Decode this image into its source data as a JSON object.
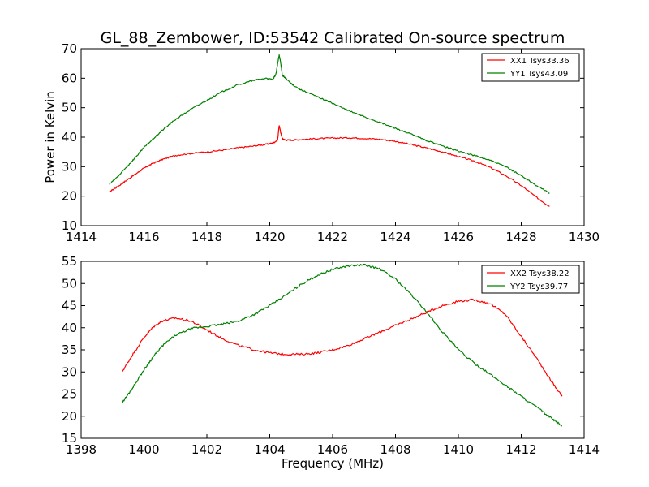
{
  "figure": {
    "title": "GL_88_Zembower, ID:53542 Calibrated On-source spectrum"
  },
  "chart_data": [
    {
      "type": "line",
      "title": "GL_88_Zembower, ID:53542 Calibrated On-source spectrum",
      "xlabel": "",
      "ylabel": "Power in Kelvin",
      "xlim": [
        1414,
        1430
      ],
      "ylim": [
        10,
        70
      ],
      "xticks": [
        "1414",
        "1416",
        "1418",
        "1420",
        "1422",
        "1424",
        "1426",
        "1428",
        "1430"
      ],
      "yticks": [
        "10",
        "20",
        "30",
        "40",
        "50",
        "60",
        "70"
      ],
      "legend": "top-right",
      "grid": false,
      "series": [
        {
          "name": "XX1 Tsys33.36",
          "color": "#ff0000",
          "x": [
            1414.9,
            1415.2,
            1415.5,
            1415.8,
            1416.0,
            1416.3,
            1416.6,
            1417.0,
            1417.5,
            1418.0,
            1418.5,
            1419.0,
            1419.5,
            1419.9,
            1420.1,
            1420.25,
            1420.3,
            1420.35,
            1420.4,
            1420.5,
            1420.7,
            1421.0,
            1421.5,
            1422.0,
            1422.5,
            1423.0,
            1423.5,
            1424.0,
            1424.5,
            1425.0,
            1425.5,
            1426.0,
            1426.5,
            1427.0,
            1427.5,
            1428.0,
            1428.5,
            1428.9
          ],
          "values": [
            21.5,
            23.5,
            25.8,
            28.0,
            29.5,
            31.2,
            32.5,
            33.8,
            34.5,
            35.0,
            35.6,
            36.4,
            37.0,
            37.6,
            38.0,
            39.0,
            44.0,
            41.5,
            39.5,
            39.0,
            39.0,
            39.2,
            39.5,
            39.7,
            39.8,
            39.6,
            39.3,
            38.6,
            37.5,
            36.3,
            35.0,
            33.4,
            31.9,
            29.8,
            27.0,
            23.6,
            19.5,
            16.5
          ]
        },
        {
          "name": "YY1 Tsys43.09",
          "color": "#008000",
          "x": [
            1414.9,
            1415.2,
            1415.5,
            1415.8,
            1416.0,
            1416.3,
            1416.6,
            1417.0,
            1417.5,
            1418.0,
            1418.5,
            1419.0,
            1419.5,
            1419.9,
            1420.1,
            1420.2,
            1420.3,
            1420.35,
            1420.4,
            1420.5,
            1420.7,
            1421.0,
            1421.5,
            1422.0,
            1422.5,
            1423.0,
            1423.5,
            1424.0,
            1424.5,
            1425.0,
            1425.5,
            1426.0,
            1426.5,
            1427.0,
            1427.5,
            1428.0,
            1428.5,
            1428.9
          ],
          "values": [
            24.0,
            27.0,
            30.5,
            34.0,
            36.5,
            39.5,
            42.5,
            46.0,
            49.5,
            52.5,
            55.5,
            57.8,
            59.3,
            60.0,
            59.5,
            61.5,
            68.0,
            65.0,
            61.0,
            60.0,
            58.0,
            56.0,
            53.8,
            51.5,
            49.0,
            47.0,
            45.0,
            43.0,
            41.0,
            38.8,
            37.0,
            35.3,
            33.8,
            32.2,
            30.0,
            27.0,
            23.5,
            21.0
          ]
        }
      ]
    },
    {
      "type": "line",
      "title": "",
      "xlabel": "Frequency (MHz)",
      "ylabel": "",
      "xlim": [
        1398,
        1414
      ],
      "ylim": [
        15,
        55
      ],
      "xticks": [
        "1398",
        "1400",
        "1402",
        "1404",
        "1406",
        "1408",
        "1410",
        "1412",
        "1414"
      ],
      "yticks": [
        "15",
        "20",
        "25",
        "30",
        "35",
        "40",
        "45",
        "50",
        "55"
      ],
      "legend": "top-right",
      "grid": false,
      "series": [
        {
          "name": "XX2 Tsys38.22",
          "color": "#ff0000",
          "x": [
            1399.3,
            1399.6,
            1400.0,
            1400.3,
            1400.6,
            1401.0,
            1401.5,
            1402.0,
            1402.5,
            1403.0,
            1403.5,
            1404.0,
            1404.5,
            1405.0,
            1405.5,
            1406.0,
            1406.5,
            1407.0,
            1407.5,
            1408.0,
            1408.5,
            1409.0,
            1409.5,
            1410.0,
            1410.5,
            1411.0,
            1411.5,
            1412.0,
            1412.5,
            1413.0,
            1413.3
          ],
          "values": [
            30.0,
            33.5,
            37.8,
            40.2,
            41.6,
            42.2,
            41.5,
            39.5,
            37.5,
            36.0,
            35.0,
            34.3,
            34.0,
            34.0,
            34.3,
            35.0,
            36.0,
            37.5,
            39.0,
            40.5,
            42.0,
            43.5,
            45.0,
            46.0,
            46.3,
            45.5,
            43.0,
            38.0,
            33.0,
            27.5,
            24.5
          ]
        },
        {
          "name": "YY2 Tsys39.77",
          "color": "#008000",
          "x": [
            1399.3,
            1399.6,
            1400.0,
            1400.3,
            1400.6,
            1401.0,
            1401.5,
            1402.0,
            1402.5,
            1403.0,
            1403.5,
            1404.0,
            1404.5,
            1405.0,
            1405.5,
            1406.0,
            1406.5,
            1407.0,
            1407.5,
            1408.0,
            1408.5,
            1409.0,
            1409.5,
            1410.0,
            1410.5,
            1411.0,
            1411.5,
            1412.0,
            1412.5,
            1413.0,
            1413.3
          ],
          "values": [
            23.0,
            26.0,
            30.5,
            33.5,
            36.0,
            38.3,
            39.8,
            40.3,
            40.8,
            41.5,
            43.0,
            45.0,
            47.3,
            49.8,
            51.8,
            53.2,
            54.0,
            54.2,
            53.3,
            51.0,
            47.5,
            43.5,
            39.0,
            35.0,
            32.0,
            29.5,
            27.0,
            24.5,
            22.0,
            19.3,
            17.8
          ]
        }
      ]
    }
  ]
}
